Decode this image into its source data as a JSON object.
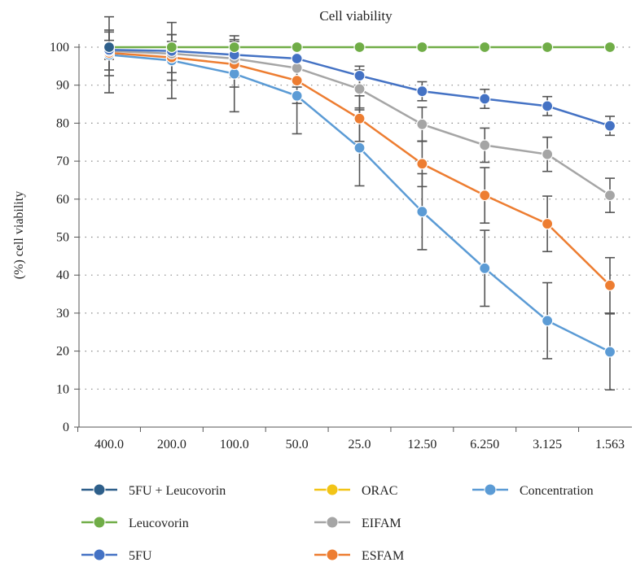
{
  "chart_data": {
    "type": "line",
    "title": "Cell viability",
    "xlabel": "",
    "ylabel": "(%) cell viability",
    "ylim": [
      0,
      100
    ],
    "yticks": [
      0,
      10,
      20,
      30,
      40,
      50,
      60,
      70,
      80,
      90,
      100
    ],
    "categories": [
      "400.0",
      "200.0",
      "100.0",
      "50.0",
      "25.0",
      "12.50",
      "6.250",
      "3.125",
      "1.563"
    ],
    "grid": "horizontal dotted",
    "legend_position": "bottom",
    "legend_entries": [
      {
        "name": "5FU + Leucovorin",
        "color": "#2e5f8a"
      },
      {
        "name": "ORAC",
        "color": "#f2c417"
      },
      {
        "name": "Concentration",
        "color": "#5b9bd5"
      },
      {
        "name": "Leucovorin",
        "color": "#70ad47"
      },
      {
        "name": "EIFAM",
        "color": "#a5a5a5"
      },
      {
        "name": "5FU",
        "color": "#4472c4"
      },
      {
        "name": "ESFAM",
        "color": "#ed7d31"
      }
    ],
    "series": [
      {
        "name": "Concentration",
        "color": "#5b9bd5",
        "values": [
          98,
          96.5,
          93,
          87.2,
          73.5,
          56.7,
          41.8,
          28,
          19.8
        ],
        "errors": [
          10,
          10,
          10,
          10,
          10,
          10,
          10,
          10,
          10
        ]
      },
      {
        "name": "ESFAM",
        "color": "#ed7d31",
        "values": [
          98.5,
          97.3,
          95.5,
          91.2,
          81.2,
          69.3,
          61,
          53.5,
          37.3
        ],
        "errors": [
          6,
          6,
          6,
          6,
          6,
          6,
          7.3,
          7.3,
          7.3
        ]
      },
      {
        "name": "EIFAM",
        "color": "#a5a5a5",
        "values": [
          99,
          98.3,
          97,
          94.5,
          89,
          79.7,
          74.2,
          71.8,
          61
        ],
        "errors": [
          5,
          5,
          5,
          5,
          5,
          4.5,
          4.5,
          4.5,
          4.5
        ]
      },
      {
        "name": "5FU",
        "color": "#4472c4",
        "values": [
          99.3,
          99,
          98,
          97,
          92.5,
          88.4,
          86.4,
          84.5,
          79.3
        ],
        "errors": [
          2.5,
          2.5,
          2.5,
          2.5,
          2.5,
          2.5,
          2.5,
          2.5,
          2.5
        ]
      },
      {
        "name": "Leucovorin",
        "color": "#70ad47",
        "values": [
          100,
          100,
          100,
          100,
          100,
          100,
          100,
          100,
          100
        ],
        "errors": null
      },
      {
        "name": "5FU + Leucovorin",
        "color": "#2e5f8a",
        "values": [
          100,
          null,
          null,
          null,
          null,
          null,
          null,
          null,
          null
        ],
        "errors": null
      }
    ]
  }
}
